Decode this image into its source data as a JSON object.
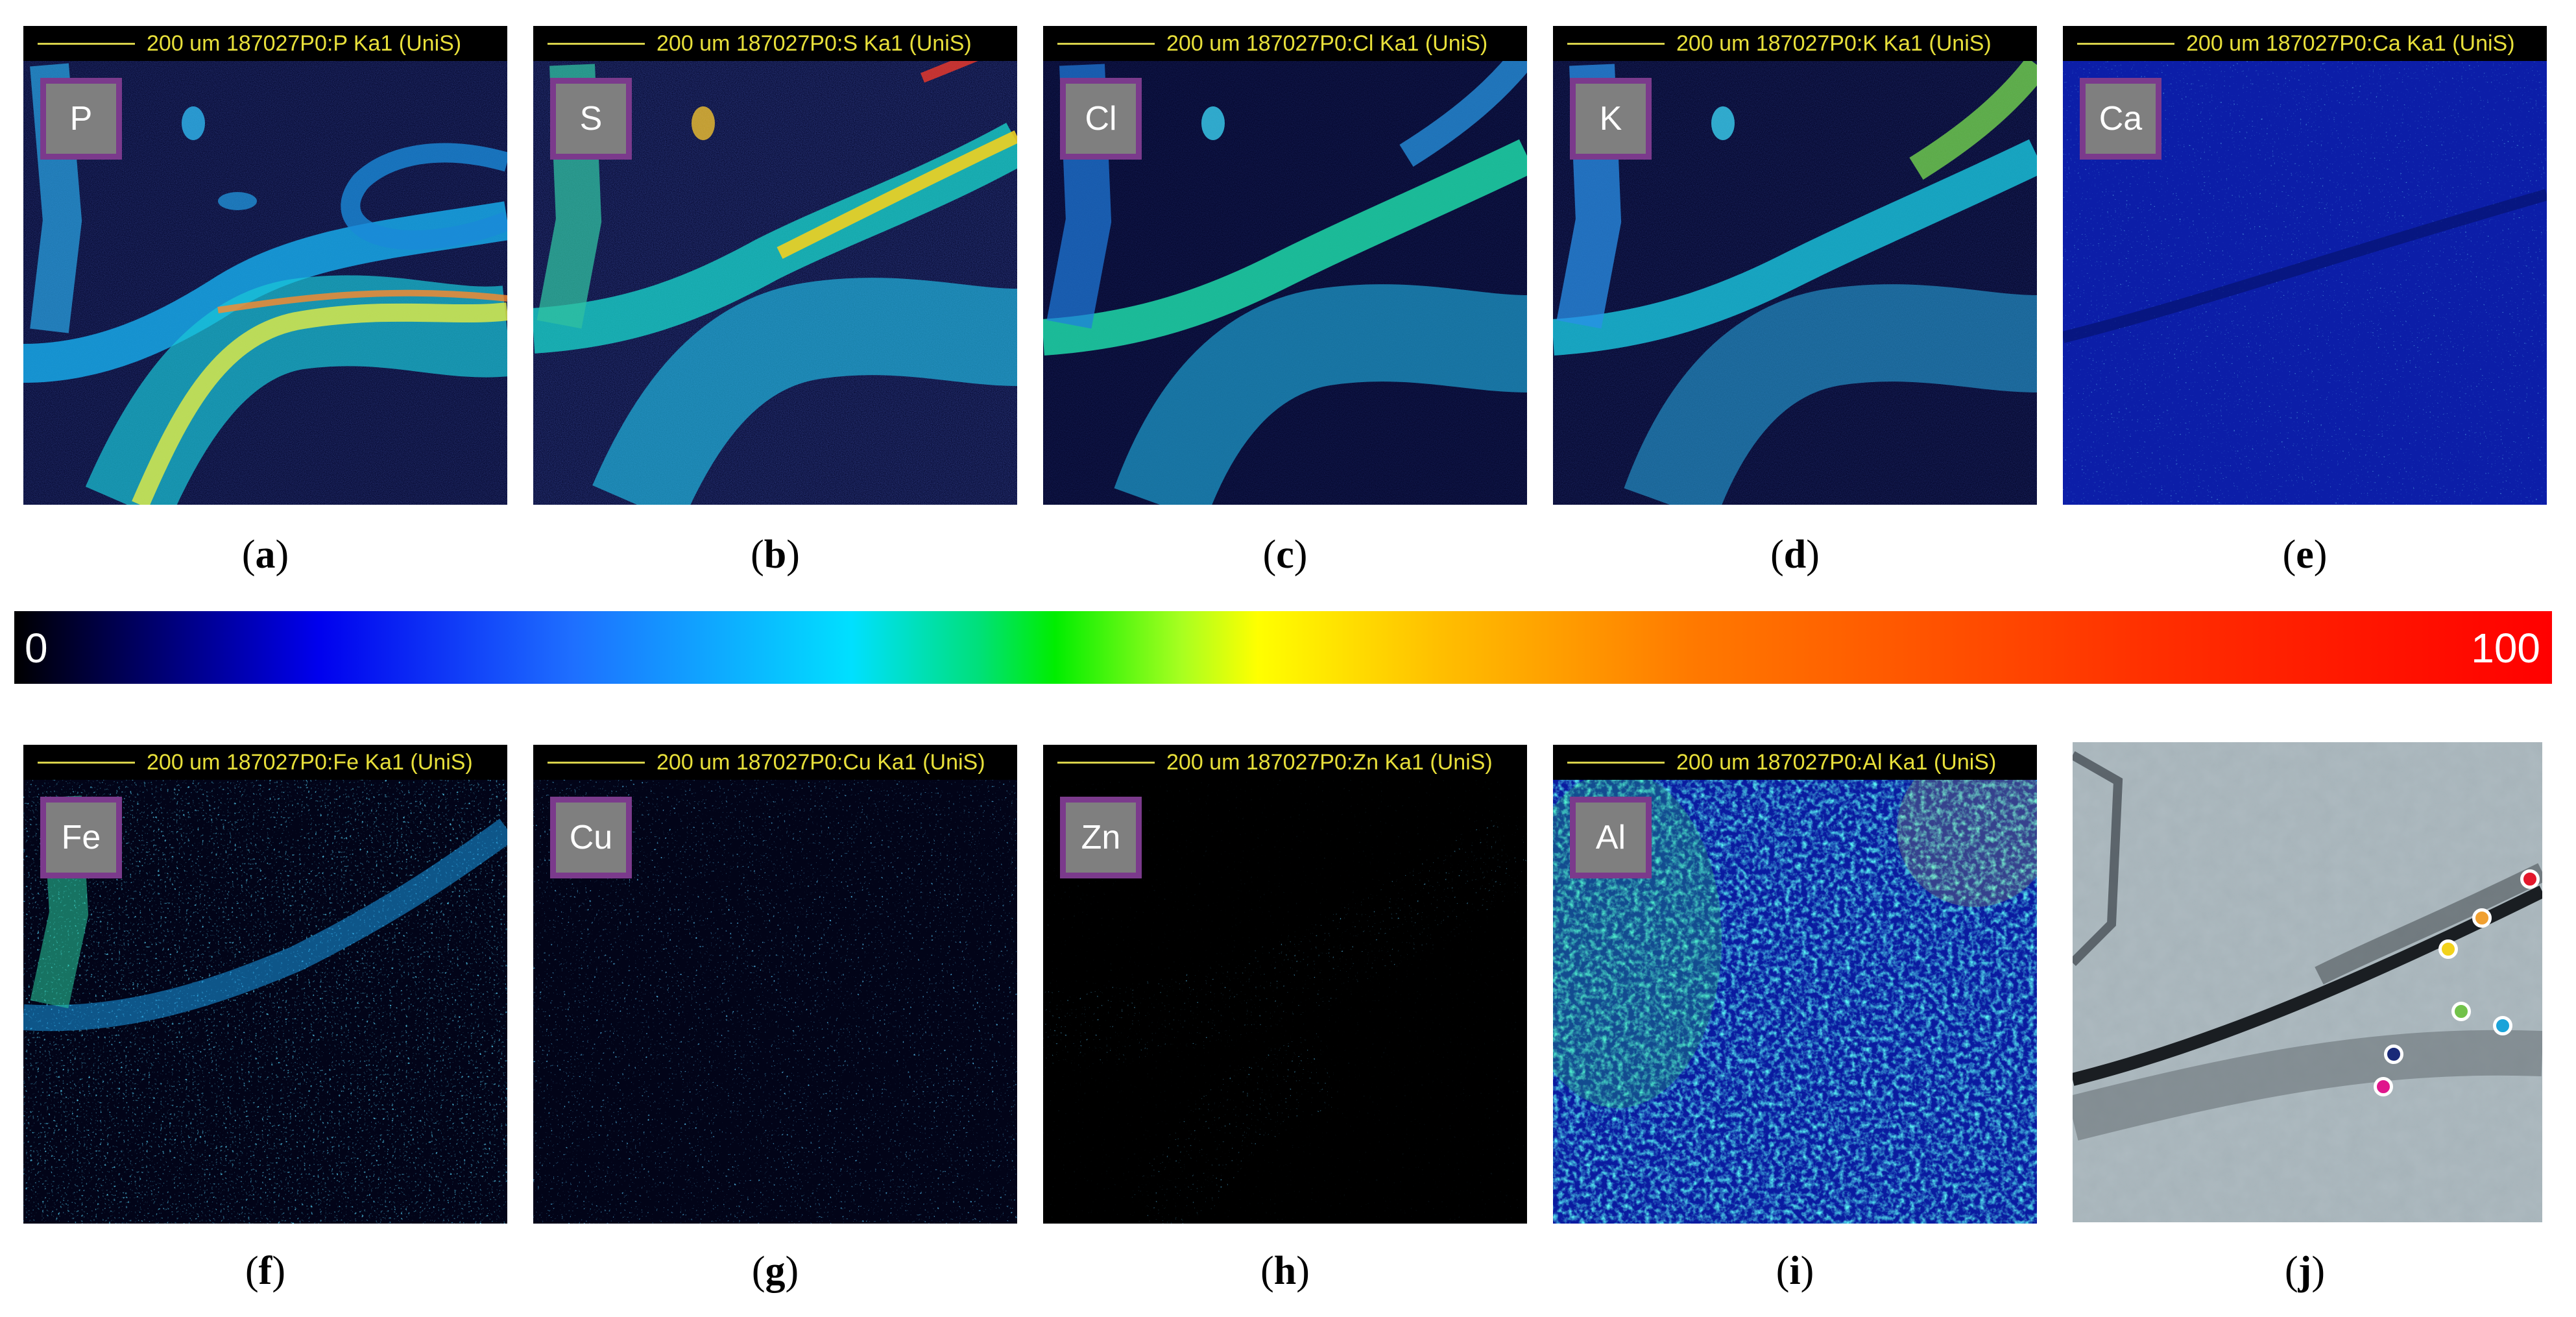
{
  "panels": [
    {
      "id": "a",
      "header": "200 um 187027P0:P  Ka1 (UniS)",
      "element": "P",
      "caption_letter": "a"
    },
    {
      "id": "b",
      "header": "200 um 187027P0:S  Ka1 (UniS)",
      "element": "S",
      "caption_letter": "b"
    },
    {
      "id": "c",
      "header": "200 um 187027P0:Cl Ka1 (UniS)",
      "element": "Cl",
      "caption_letter": "c"
    },
    {
      "id": "d",
      "header": "200 um 187027P0:K  Ka1 (UniS)",
      "element": "K",
      "caption_letter": "d"
    },
    {
      "id": "e",
      "header": "200 um 187027P0:Ca Ka1 (UniS)",
      "element": "Ca",
      "caption_letter": "e"
    },
    {
      "id": "f",
      "header": "200 um 187027P0:Fe Ka1 (UniS)",
      "element": "Fe",
      "caption_letter": "f"
    },
    {
      "id": "g",
      "header": "200 um 187027P0:Cu Ka1 (UniS)",
      "element": "Cu",
      "caption_letter": "g"
    },
    {
      "id": "h",
      "header": "200 um 187027P0:Zn Ka1 (UniS)",
      "element": "Zn",
      "caption_letter": "h"
    },
    {
      "id": "i",
      "header": "200 um 187027P0:Al Ka1 (UniS)",
      "element": "Al",
      "caption_letter": "i"
    },
    {
      "id": "j",
      "caption_letter": "j"
    }
  ],
  "colorscale": {
    "min_label": "0",
    "max_label": "100",
    "stops": [
      "#000000",
      "#0000ee",
      "#1e6fff",
      "#00e0ff",
      "#00ee00",
      "#ffff00",
      "#ff7a00",
      "#ff0000"
    ]
  },
  "marker_colors": [
    "#e3172b",
    "#f0a030",
    "#f2d21b",
    "#72c24a",
    "#1aa3d9",
    "#1a2a78",
    "#e0168c"
  ]
}
